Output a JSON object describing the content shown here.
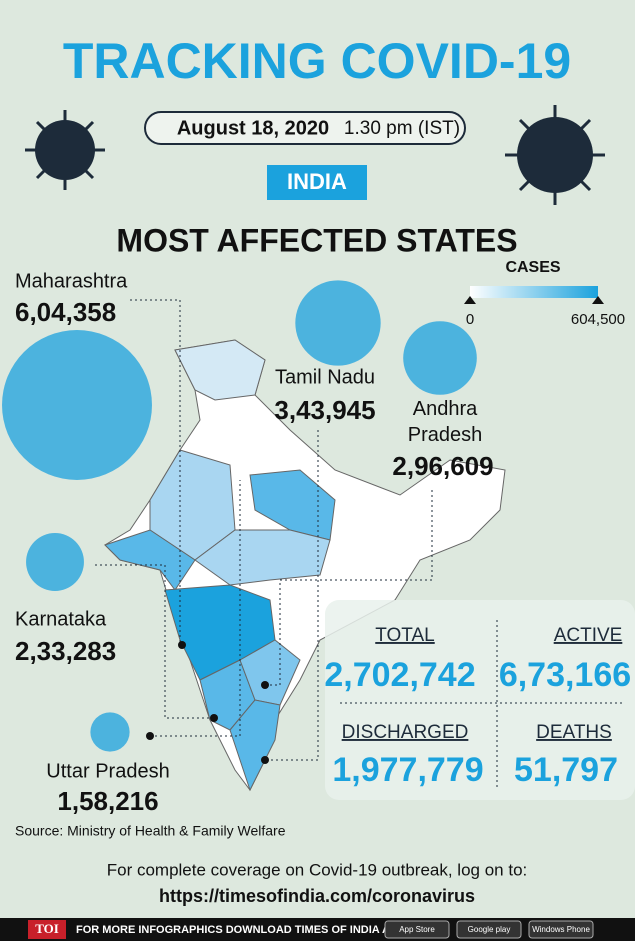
{
  "header": {
    "title": "TRACKING COVID-19",
    "date": "August 18, 2020",
    "time": "1.30 pm (IST)",
    "country": "INDIA",
    "subtitle": "MOST AFFECTED STATES"
  },
  "legend": {
    "title": "CASES",
    "min": 0,
    "max": {
      "value": 604500,
      "label": "604,500"
    }
  },
  "states": [
    {
      "name": "Maharashtra",
      "value": 604358,
      "label": "6,04,358"
    },
    {
      "name": "Tamil Nadu",
      "value": 343945,
      "label": "3,43,945"
    },
    {
      "name": "Andhra Pradesh",
      "value": 296609,
      "label": "2,96,609"
    },
    {
      "name": "Karnataka",
      "value": 233283,
      "label": "2,33,283"
    },
    {
      "name": "Uttar Pradesh",
      "value": 158216,
      "label": "1,58,216"
    }
  ],
  "stats": [
    {
      "label": "TOTAL",
      "value": "2,702,742"
    },
    {
      "label": "ACTIVE",
      "value": "6,73,166"
    },
    {
      "label": "DISCHARGED",
      "value": "1,977,779"
    },
    {
      "label": "DEATHS",
      "value": "51,797"
    }
  ],
  "source": "Source: Ministry of Health & Family Welfare",
  "footer": {
    "note": "For complete coverage on Covid-19 outbreak, log on to:",
    "url": "https://timesofindia.com/coronavirus",
    "logo": "TOI",
    "banner": "FOR MORE INFOGRAPHICS DOWNLOAD TIMES OF INDIA APP",
    "badges": [
      "App Store",
      "Google play",
      "Windows Phone"
    ]
  }
}
